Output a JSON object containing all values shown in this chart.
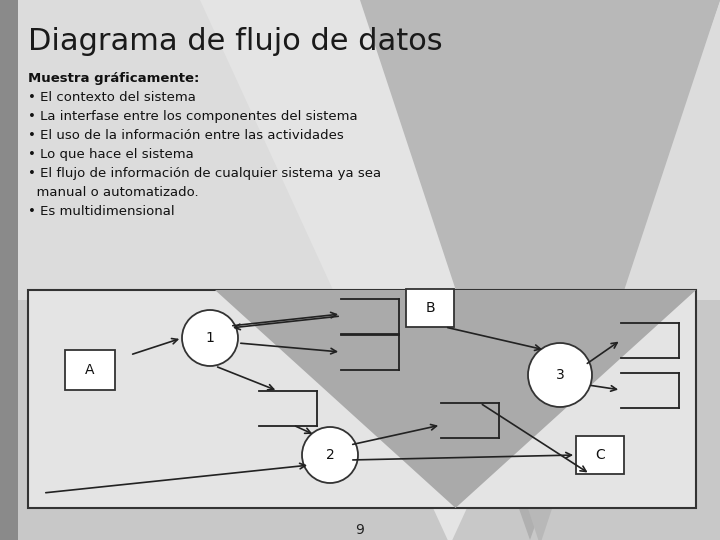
{
  "title": "Diagrama de flujo de datos",
  "title_fontsize": 22,
  "title_color": "#1a1a1a",
  "text_lines": [
    {
      "text": "Muestra gráficamente:",
      "bold": true
    },
    {
      "text": "• El contexto del sistema",
      "bold": false
    },
    {
      "text": "• La interfase entre los componentes del sistema",
      "bold": false
    },
    {
      "text": "• El uso de la información entre las actividades",
      "bold": false
    },
    {
      "text": "• Lo que hace el sistema",
      "bold": false
    },
    {
      "text": "• El flujo de información de cualquier sistema ya sea",
      "bold": false
    },
    {
      "text": "  manual o automatizado.",
      "bold": false
    },
    {
      "text": "• Es multidimensional",
      "bold": false
    }
  ],
  "page_number": "9",
  "bg_light": "#d4d4d4",
  "bg_dark": "#a0a0a0",
  "bg_medium": "#bebebe",
  "slide_left_strip": "#888888",
  "diagram_bg_light": "#e8e8e8",
  "diagram_bg_dark": "#a8a8a8"
}
